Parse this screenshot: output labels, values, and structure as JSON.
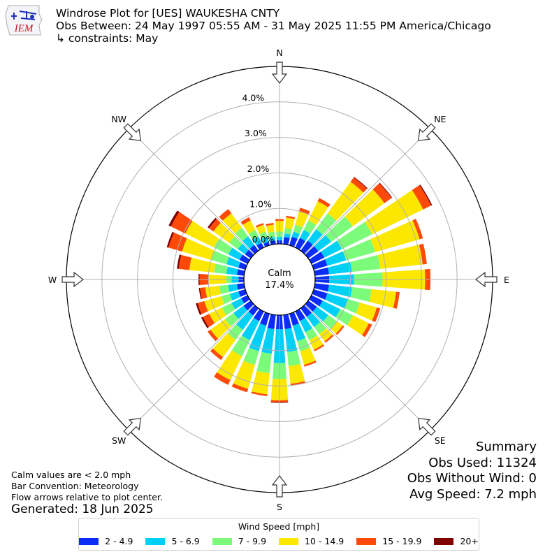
{
  "header": {
    "logo_text": "IEM",
    "title": "Windrose Plot for [UES] WAUKESHA CNTY",
    "obs_between": "Obs Between: 24 May 1997 05:55 AM - 31 May 2025 11:55 PM America/Chicago",
    "constraints": "↳ constraints: May"
  },
  "notes": {
    "calm_note": "Calm values are < 2.0 mph",
    "bar_convention": "Bar Convention: Meteorology",
    "flow_arrows": "Flow arrows relative to plot center.",
    "generated": "Generated: 18 Jun 2025"
  },
  "summary": {
    "title": "Summary",
    "obs_used": "Obs Used: 11324",
    "obs_without_wind": "Obs Without Wind: 0",
    "avg_speed": "Avg Speed: 7.2 mph"
  },
  "legend": {
    "title": "Wind Speed [mph]",
    "items": [
      {
        "label": "2 - 4.9",
        "color": "#0a2cf5"
      },
      {
        "label": "5 - 6.9",
        "color": "#00d0f5"
      },
      {
        "label": "7 - 9.9",
        "color": "#7cfb7b"
      },
      {
        "label": "10 - 14.9",
        "color": "#fce700"
      },
      {
        "label": "15 - 19.9",
        "color": "#fe4a08"
      },
      {
        "label": "20+",
        "color": "#800000"
      }
    ]
  },
  "chart_data": {
    "type": "windrose",
    "calm_label": "Calm",
    "calm_percent": "17.4%",
    "calm_value": 17.4,
    "radial_ticks": [
      {
        "value": 0.0,
        "label": "0.0%"
      },
      {
        "value": 1.0,
        "label": "1.0%"
      },
      {
        "value": 2.0,
        "label": "2.0%"
      },
      {
        "value": 3.0,
        "label": "3.0%"
      },
      {
        "value": 4.0,
        "label": "4.0%"
      }
    ],
    "rmax": 5.0,
    "compass_labels": [
      {
        "label": "N",
        "angle": 0
      },
      {
        "label": "NE",
        "angle": 45
      },
      {
        "label": "E",
        "angle": 90
      },
      {
        "label": "SE",
        "angle": 135
      },
      {
        "label": "S",
        "angle": 180
      },
      {
        "label": "SW",
        "angle": 225
      },
      {
        "label": "W",
        "angle": 270
      },
      {
        "label": "NW",
        "angle": 315
      }
    ],
    "speed_bins": [
      "2 - 4.9",
      "5 - 6.9",
      "7 - 9.9",
      "10 - 14.9",
      "15 - 19.9",
      "20+"
    ],
    "colors": [
      "#0a2cf5",
      "#00d0f5",
      "#7cfb7b",
      "#fce700",
      "#fe4a08",
      "#800000"
    ],
    "direction_step_deg": 10,
    "directions": [
      {
        "dir": 0,
        "values": [
          0.1,
          0.1,
          0.15,
          0.3,
          0.05,
          0.0
        ]
      },
      {
        "dir": 10,
        "values": [
          0.2,
          0.1,
          0.15,
          0.3,
          0.05,
          0.0
        ]
      },
      {
        "dir": 20,
        "values": [
          0.25,
          0.15,
          0.2,
          0.4,
          0.1,
          0.0
        ]
      },
      {
        "dir": 30,
        "values": [
          0.3,
          0.25,
          0.3,
          0.6,
          0.1,
          0.0
        ]
      },
      {
        "dir": 40,
        "values": [
          0.35,
          0.4,
          0.55,
          1.1,
          0.15,
          0.02
        ]
      },
      {
        "dir": 50,
        "values": [
          0.35,
          0.45,
          0.75,
          1.1,
          0.25,
          0.02
        ]
      },
      {
        "dir": 60,
        "values": [
          0.4,
          0.55,
          0.95,
          1.6,
          0.25,
          0.03
        ]
      },
      {
        "dir": 70,
        "values": [
          0.4,
          0.55,
          0.85,
          1.3,
          0.1,
          0.0
        ]
      },
      {
        "dir": 80,
        "values": [
          0.4,
          0.65,
          0.8,
          1.2,
          0.12,
          0.0
        ]
      },
      {
        "dir": 90,
        "values": [
          0.4,
          0.7,
          0.8,
          1.2,
          0.15,
          0.0
        ]
      },
      {
        "dir": 100,
        "values": [
          0.4,
          0.65,
          0.55,
          0.7,
          0.1,
          0.0
        ]
      },
      {
        "dir": 110,
        "values": [
          0.4,
          0.6,
          0.35,
          0.5,
          0.1,
          0.0
        ]
      },
      {
        "dir": 120,
        "values": [
          0.35,
          0.55,
          0.4,
          0.5,
          0.1,
          0.0
        ]
      },
      {
        "dir": 130,
        "values": [
          0.3,
          0.4,
          0.3,
          0.2,
          0.05,
          0.0
        ]
      },
      {
        "dir": 140,
        "values": [
          0.3,
          0.35,
          0.25,
          0.25,
          0.05,
          0.0
        ]
      },
      {
        "dir": 150,
        "values": [
          0.3,
          0.35,
          0.25,
          0.3,
          0.05,
          0.0
        ]
      },
      {
        "dir": 160,
        "values": [
          0.35,
          0.45,
          0.3,
          0.4,
          0.05,
          0.0
        ]
      },
      {
        "dir": 170,
        "values": [
          0.4,
          0.65,
          0.4,
          0.5,
          0.05,
          0.0
        ]
      },
      {
        "dir": 180,
        "values": [
          0.4,
          0.95,
          0.45,
          0.6,
          0.05,
          0.02
        ]
      },
      {
        "dir": 190,
        "values": [
          0.4,
          0.7,
          0.55,
          0.6,
          0.05,
          0.0
        ]
      },
      {
        "dir": 200,
        "values": [
          0.35,
          0.75,
          0.4,
          0.7,
          0.1,
          0.0
        ]
      },
      {
        "dir": 210,
        "values": [
          0.3,
          0.6,
          0.5,
          0.75,
          0.15,
          0.0
        ]
      },
      {
        "dir": 220,
        "values": [
          0.25,
          0.5,
          0.35,
          0.6,
          0.1,
          0.0
        ]
      },
      {
        "dir": 230,
        "values": [
          0.25,
          0.35,
          0.3,
          0.5,
          0.1,
          0.0
        ]
      },
      {
        "dir": 240,
        "values": [
          0.2,
          0.3,
          0.3,
          0.4,
          0.2,
          0.05
        ]
      },
      {
        "dir": 250,
        "values": [
          0.2,
          0.25,
          0.25,
          0.5,
          0.2,
          0.05
        ]
      },
      {
        "dir": 260,
        "values": [
          0.2,
          0.25,
          0.25,
          0.4,
          0.15,
          0.03
        ]
      },
      {
        "dir": 270,
        "values": [
          0.15,
          0.2,
          0.15,
          0.5,
          0.25,
          0.03
        ]
      },
      {
        "dir": 280,
        "values": [
          0.2,
          0.3,
          0.35,
          0.7,
          0.3,
          0.05
        ]
      },
      {
        "dir": 290,
        "values": [
          0.2,
          0.35,
          0.45,
          0.85,
          0.4,
          0.05
        ]
      },
      {
        "dir": 300,
        "values": [
          0.25,
          0.35,
          0.45,
          0.9,
          0.45,
          0.07
        ]
      },
      {
        "dir": 310,
        "values": [
          0.2,
          0.25,
          0.3,
          0.55,
          0.15,
          0.05
        ]
      },
      {
        "dir": 320,
        "values": [
          0.2,
          0.3,
          0.3,
          0.5,
          0.15,
          0.0
        ]
      },
      {
        "dir": 330,
        "values": [
          0.15,
          0.2,
          0.2,
          0.3,
          0.1,
          0.0
        ]
      },
      {
        "dir": 340,
        "values": [
          0.1,
          0.15,
          0.15,
          0.2,
          0.05,
          0.0
        ]
      },
      {
        "dir": 350,
        "values": [
          0.1,
          0.1,
          0.15,
          0.2,
          0.05,
          0.0
        ]
      }
    ]
  }
}
